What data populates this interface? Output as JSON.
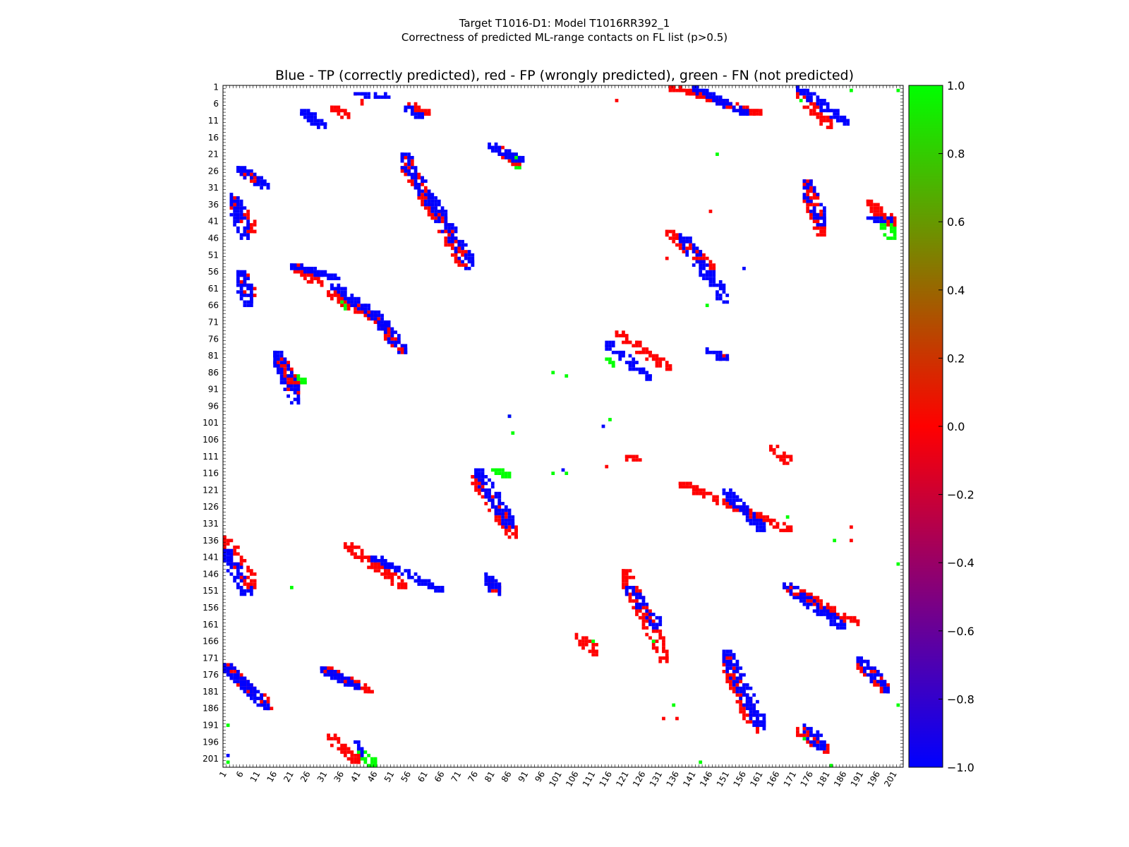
{
  "chart_data": {
    "type": "heatmap",
    "title_line1": "Target T1016-D1: Model T1016RR392_1",
    "title_line2": "Correctness of predicted ML-range contacts on FL list (p>0.5)",
    "axes_title": "Blue - TP (correctly predicted), red - FP (wrongly predicted), green - FN (not predicted)",
    "xlabel": "",
    "ylabel": "",
    "xlim": [
      1,
      203
    ],
    "ylim": [
      1,
      203
    ],
    "x_ticks": [
      "1",
      "6",
      "11",
      "16",
      "21",
      "26",
      "31",
      "36",
      "41",
      "46",
      "51",
      "56",
      "61",
      "66",
      "71",
      "76",
      "81",
      "86",
      "91",
      "96",
      "101",
      "106",
      "111",
      "116",
      "121",
      "126",
      "131",
      "136",
      "141",
      "146",
      "151",
      "156",
      "161",
      "166",
      "171",
      "176",
      "181",
      "186",
      "191",
      "196",
      "201"
    ],
    "y_ticks": [
      "1",
      "6",
      "11",
      "16",
      "21",
      "26",
      "31",
      "36",
      "41",
      "46",
      "51",
      "56",
      "61",
      "66",
      "71",
      "76",
      "81",
      "86",
      "91",
      "96",
      "101",
      "106",
      "111",
      "116",
      "121",
      "126",
      "131",
      "136",
      "141",
      "146",
      "151",
      "156",
      "161",
      "166",
      "171",
      "176",
      "181",
      "186",
      "191",
      "196",
      "201"
    ],
    "colorbar": {
      "min": -1.0,
      "max": 1.0,
      "colors": [
        "#0000ff",
        "#ff0000",
        "#00ff00"
      ],
      "ticks": [
        "1.0",
        "0.8",
        "0.6",
        "0.4",
        "0.2",
        "0.0",
        "−0.2",
        "−0.4",
        "−0.6",
        "−0.8",
        "−1.0"
      ]
    },
    "legend": {
      "TP": "#0000ff",
      "FP": "#ff0000",
      "FN": "#00ff00"
    },
    "clusters": [
      {
        "cat": "TP",
        "x": [
          40,
          50
        ],
        "y": [
          3,
          4
        ]
      },
      {
        "cat": "FP",
        "x": [
          40,
          42
        ],
        "y": [
          3,
          6
        ]
      },
      {
        "cat": "TP",
        "x": [
          24,
          31
        ],
        "y": [
          8,
          13
        ]
      },
      {
        "cat": "FP",
        "x": [
          33,
          38
        ],
        "y": [
          7,
          10
        ]
      },
      {
        "cat": "TP",
        "x": [
          55,
          60
        ],
        "y": [
          7,
          10
        ]
      },
      {
        "cat": "FP",
        "x": [
          56,
          62
        ],
        "y": [
          6,
          9
        ]
      },
      {
        "cat": "TP",
        "x": [
          80,
          90
        ],
        "y": [
          18,
          23
        ]
      },
      {
        "cat": "FP",
        "x": [
          83,
          89
        ],
        "y": [
          19,
          24
        ]
      },
      {
        "cat": "FN",
        "x": [
          86,
          89
        ],
        "y": [
          21,
          25
        ]
      },
      {
        "cat": "TP",
        "x": [
          5,
          14
        ],
        "y": [
          25,
          31
        ]
      },
      {
        "cat": "FP",
        "x": [
          6,
          11
        ],
        "y": [
          26,
          29
        ]
      },
      {
        "cat": "TP",
        "x": [
          3,
          8
        ],
        "y": [
          33,
          46
        ]
      },
      {
        "cat": "FP",
        "x": [
          3,
          10
        ],
        "y": [
          34,
          44
        ]
      },
      {
        "cat": "TP",
        "x": [
          54,
          75
        ],
        "y": [
          21,
          55
        ]
      },
      {
        "cat": "FP",
        "x": [
          54,
          73
        ],
        "y": [
          22,
          54
        ]
      },
      {
        "cat": "TP",
        "x": [
          21,
          35
        ],
        "y": [
          54,
          58
        ]
      },
      {
        "cat": "FP",
        "x": [
          22,
          30
        ],
        "y": [
          54,
          60
        ]
      },
      {
        "cat": "TP",
        "x": [
          33,
          50
        ],
        "y": [
          60,
          72
        ]
      },
      {
        "cat": "FP",
        "x": [
          32,
          50
        ],
        "y": [
          62,
          73
        ]
      },
      {
        "cat": "FN",
        "x": [
          35,
          38
        ],
        "y": [
          65,
          67
        ]
      },
      {
        "cat": "TP",
        "x": [
          47,
          55
        ],
        "y": [
          71,
          80
        ]
      },
      {
        "cat": "FP",
        "x": [
          49,
          54
        ],
        "y": [
          73,
          80
        ]
      },
      {
        "cat": "TP",
        "x": [
          5,
          9
        ],
        "y": [
          56,
          66
        ]
      },
      {
        "cat": "FP",
        "x": [
          6,
          10
        ],
        "y": [
          57,
          63
        ]
      },
      {
        "cat": "TP",
        "x": [
          16,
          23
        ],
        "y": [
          80,
          95
        ]
      },
      {
        "cat": "FP",
        "x": [
          17,
          23
        ],
        "y": [
          82,
          92
        ]
      },
      {
        "cat": "FN",
        "x": [
          19,
          25
        ],
        "y": [
          87,
          89
        ]
      },
      {
        "cat": "TP",
        "x": [
          115,
          128
        ],
        "y": [
          77,
          88
        ]
      },
      {
        "cat": "FP",
        "x": [
          118,
          134
        ],
        "y": [
          74,
          85
        ]
      },
      {
        "cat": "FN",
        "x": [
          115,
          117
        ],
        "y": [
          82,
          84
        ]
      },
      {
        "cat": "TP",
        "x": [
          145,
          151
        ],
        "y": [
          79,
          82
        ]
      },
      {
        "cat": "FP",
        "x": [
          148,
          151
        ],
        "y": [
          80,
          82
        ]
      },
      {
        "cat": "TP",
        "x": [
          137,
          151
        ],
        "y": [
          45,
          65
        ]
      },
      {
        "cat": "FP",
        "x": [
          133,
          147
        ],
        "y": [
          44,
          55
        ]
      },
      {
        "cat": "TP",
        "x": [
          141,
          157
        ],
        "y": [
          1,
          9
        ]
      },
      {
        "cat": "FP",
        "x": [
          134,
          161
        ],
        "y": [
          1,
          9
        ]
      },
      {
        "cat": "TP",
        "x": [
          172,
          187
        ],
        "y": [
          1,
          12
        ]
      },
      {
        "cat": "FP",
        "x": [
          172,
          182
        ],
        "y": [
          3,
          13
        ]
      },
      {
        "cat": "TP",
        "x": [
          174,
          180
        ],
        "y": [
          29,
          42
        ]
      },
      {
        "cat": "FP",
        "x": [
          174,
          180
        ],
        "y": [
          29,
          45
        ]
      },
      {
        "cat": "TP",
        "x": [
          193,
          200
        ],
        "y": [
          40,
          41
        ]
      },
      {
        "cat": "FP",
        "x": [
          193,
          201
        ],
        "y": [
          35,
          42
        ]
      },
      {
        "cat": "FN",
        "x": [
          197,
          201
        ],
        "y": [
          40,
          46
        ]
      },
      {
        "cat": "TP",
        "x": [
          76,
          87
        ],
        "y": [
          115,
          132
        ]
      },
      {
        "cat": "FP",
        "x": [
          75,
          88
        ],
        "y": [
          117,
          135
        ]
      },
      {
        "cat": "FN",
        "x": [
          81,
          86
        ],
        "y": [
          115,
          117
        ]
      },
      {
        "cat": "TP",
        "x": [
          1,
          9
        ],
        "y": [
          139,
          153
        ]
      },
      {
        "cat": "FP",
        "x": [
          1,
          10
        ],
        "y": [
          135,
          150
        ]
      },
      {
        "cat": "TP",
        "x": [
          45,
          66
        ],
        "y": [
          141,
          151
        ]
      },
      {
        "cat": "FP",
        "x": [
          37,
          55
        ],
        "y": [
          137,
          150
        ]
      },
      {
        "cat": "TP",
        "x": [
          79,
          83
        ],
        "y": [
          146,
          152
        ]
      },
      {
        "cat": "FP",
        "x": [
          80,
          83
        ],
        "y": [
          148,
          151
        ]
      },
      {
        "cat": "TP",
        "x": [
          1,
          14
        ],
        "y": [
          173,
          186
        ]
      },
      {
        "cat": "FP",
        "x": [
          1,
          15
        ],
        "y": [
          173,
          186
        ]
      },
      {
        "cat": "TP",
        "x": [
          30,
          41
        ],
        "y": [
          174,
          180
        ]
      },
      {
        "cat": "FP",
        "x": [
          30,
          45
        ],
        "y": [
          174,
          181
        ]
      },
      {
        "cat": "FP",
        "x": [
          32,
          41
        ],
        "y": [
          194,
          202
        ]
      },
      {
        "cat": "TP",
        "x": [
          40,
          42
        ],
        "y": [
          196,
          200
        ]
      },
      {
        "cat": "FN",
        "x": [
          41,
          46
        ],
        "y": [
          199,
          203
        ]
      },
      {
        "cat": "TP",
        "x": [
          121,
          131
        ],
        "y": [
          150,
          162
        ]
      },
      {
        "cat": "FP",
        "x": [
          120,
          133
        ],
        "y": [
          145,
          172
        ]
      },
      {
        "cat": "FP",
        "x": [
          106,
          112
        ],
        "y": [
          164,
          170
        ]
      },
      {
        "cat": "TP",
        "x": [
          150,
          162
        ],
        "y": [
          121,
          133
        ]
      },
      {
        "cat": "FP",
        "x": [
          137,
          170
        ],
        "y": [
          119,
          133
        ]
      },
      {
        "cat": "TP",
        "x": [
          150,
          162
        ],
        "y": [
          169,
          192
        ]
      },
      {
        "cat": "FP",
        "x": [
          150,
          160
        ],
        "y": [
          170,
          193
        ]
      },
      {
        "cat": "TP",
        "x": [
          168,
          186
        ],
        "y": [
          149,
          162
        ]
      },
      {
        "cat": "FP",
        "x": [
          168,
          190
        ],
        "y": [
          149,
          161
        ]
      },
      {
        "cat": "TP",
        "x": [
          190,
          199
        ],
        "y": [
          171,
          181
        ]
      },
      {
        "cat": "FP",
        "x": [
          190,
          199
        ],
        "y": [
          172,
          181
        ]
      },
      {
        "cat": "TP",
        "x": [
          174,
          180
        ],
        "y": [
          191,
          198
        ]
      },
      {
        "cat": "FP",
        "x": [
          172,
          181
        ],
        "y": [
          192,
          199
        ]
      },
      {
        "cat": "FP",
        "x": [
          164,
          170
        ],
        "y": [
          108,
          113
        ]
      },
      {
        "cat": "FP",
        "x": [
          121,
          125
        ],
        "y": [
          111,
          112
        ]
      }
    ],
    "isolated": [
      {
        "cat": "FN",
        "x": 88,
        "y": 22
      },
      {
        "cat": "FN",
        "x": 148,
        "y": 21
      },
      {
        "cat": "FN",
        "x": 173,
        "y": 5
      },
      {
        "cat": "FN",
        "x": 188,
        "y": 2
      },
      {
        "cat": "FN",
        "x": 202,
        "y": 2
      },
      {
        "cat": "FN",
        "x": 99,
        "y": 86
      },
      {
        "cat": "FN",
        "x": 103,
        "y": 87
      },
      {
        "cat": "FN",
        "x": 86,
        "y": 99
      },
      {
        "cat": "FN",
        "x": 87,
        "y": 104
      },
      {
        "cat": "FN",
        "x": 116,
        "y": 100
      },
      {
        "cat": "TP",
        "x": 114,
        "y": 102
      },
      {
        "cat": "TP",
        "x": 86,
        "y": 99
      },
      {
        "cat": "FN",
        "x": 99,
        "y": 116
      },
      {
        "cat": "TP",
        "x": 102,
        "y": 115
      },
      {
        "cat": "FN",
        "x": 103,
        "y": 116
      },
      {
        "cat": "FN",
        "x": 21,
        "y": 150
      },
      {
        "cat": "FN",
        "x": 145,
        "y": 66
      },
      {
        "cat": "FN",
        "x": 183,
        "y": 136
      },
      {
        "cat": "FN",
        "x": 202,
        "y": 143
      },
      {
        "cat": "FN",
        "x": 202,
        "y": 185
      },
      {
        "cat": "FN",
        "x": 135,
        "y": 185
      },
      {
        "cat": "FN",
        "x": 143,
        "y": 202
      },
      {
        "cat": "FN",
        "x": 182,
        "y": 203
      },
      {
        "cat": "FN",
        "x": 129,
        "y": 166
      },
      {
        "cat": "FN",
        "x": 111,
        "y": 166
      },
      {
        "cat": "FN",
        "x": 2,
        "y": 191
      },
      {
        "cat": "FN",
        "x": 2,
        "y": 202
      },
      {
        "cat": "FN",
        "x": 169,
        "y": 129
      },
      {
        "cat": "FN",
        "x": 174,
        "y": 195
      },
      {
        "cat": "TP",
        "x": 2,
        "y": 200
      },
      {
        "cat": "FP",
        "x": 188,
        "y": 132
      },
      {
        "cat": "FP",
        "x": 188,
        "y": 136
      },
      {
        "cat": "FP",
        "x": 112,
        "y": 167
      },
      {
        "cat": "FP",
        "x": 115,
        "y": 114
      },
      {
        "cat": "FP",
        "x": 132,
        "y": 189
      },
      {
        "cat": "FP",
        "x": 136,
        "y": 189
      },
      {
        "cat": "FP",
        "x": 146,
        "y": 38
      },
      {
        "cat": "FP",
        "x": 118,
        "y": 5
      },
      {
        "cat": "TP",
        "x": 156,
        "y": 55
      },
      {
        "cat": "FP",
        "x": 133,
        "y": 52
      }
    ]
  }
}
